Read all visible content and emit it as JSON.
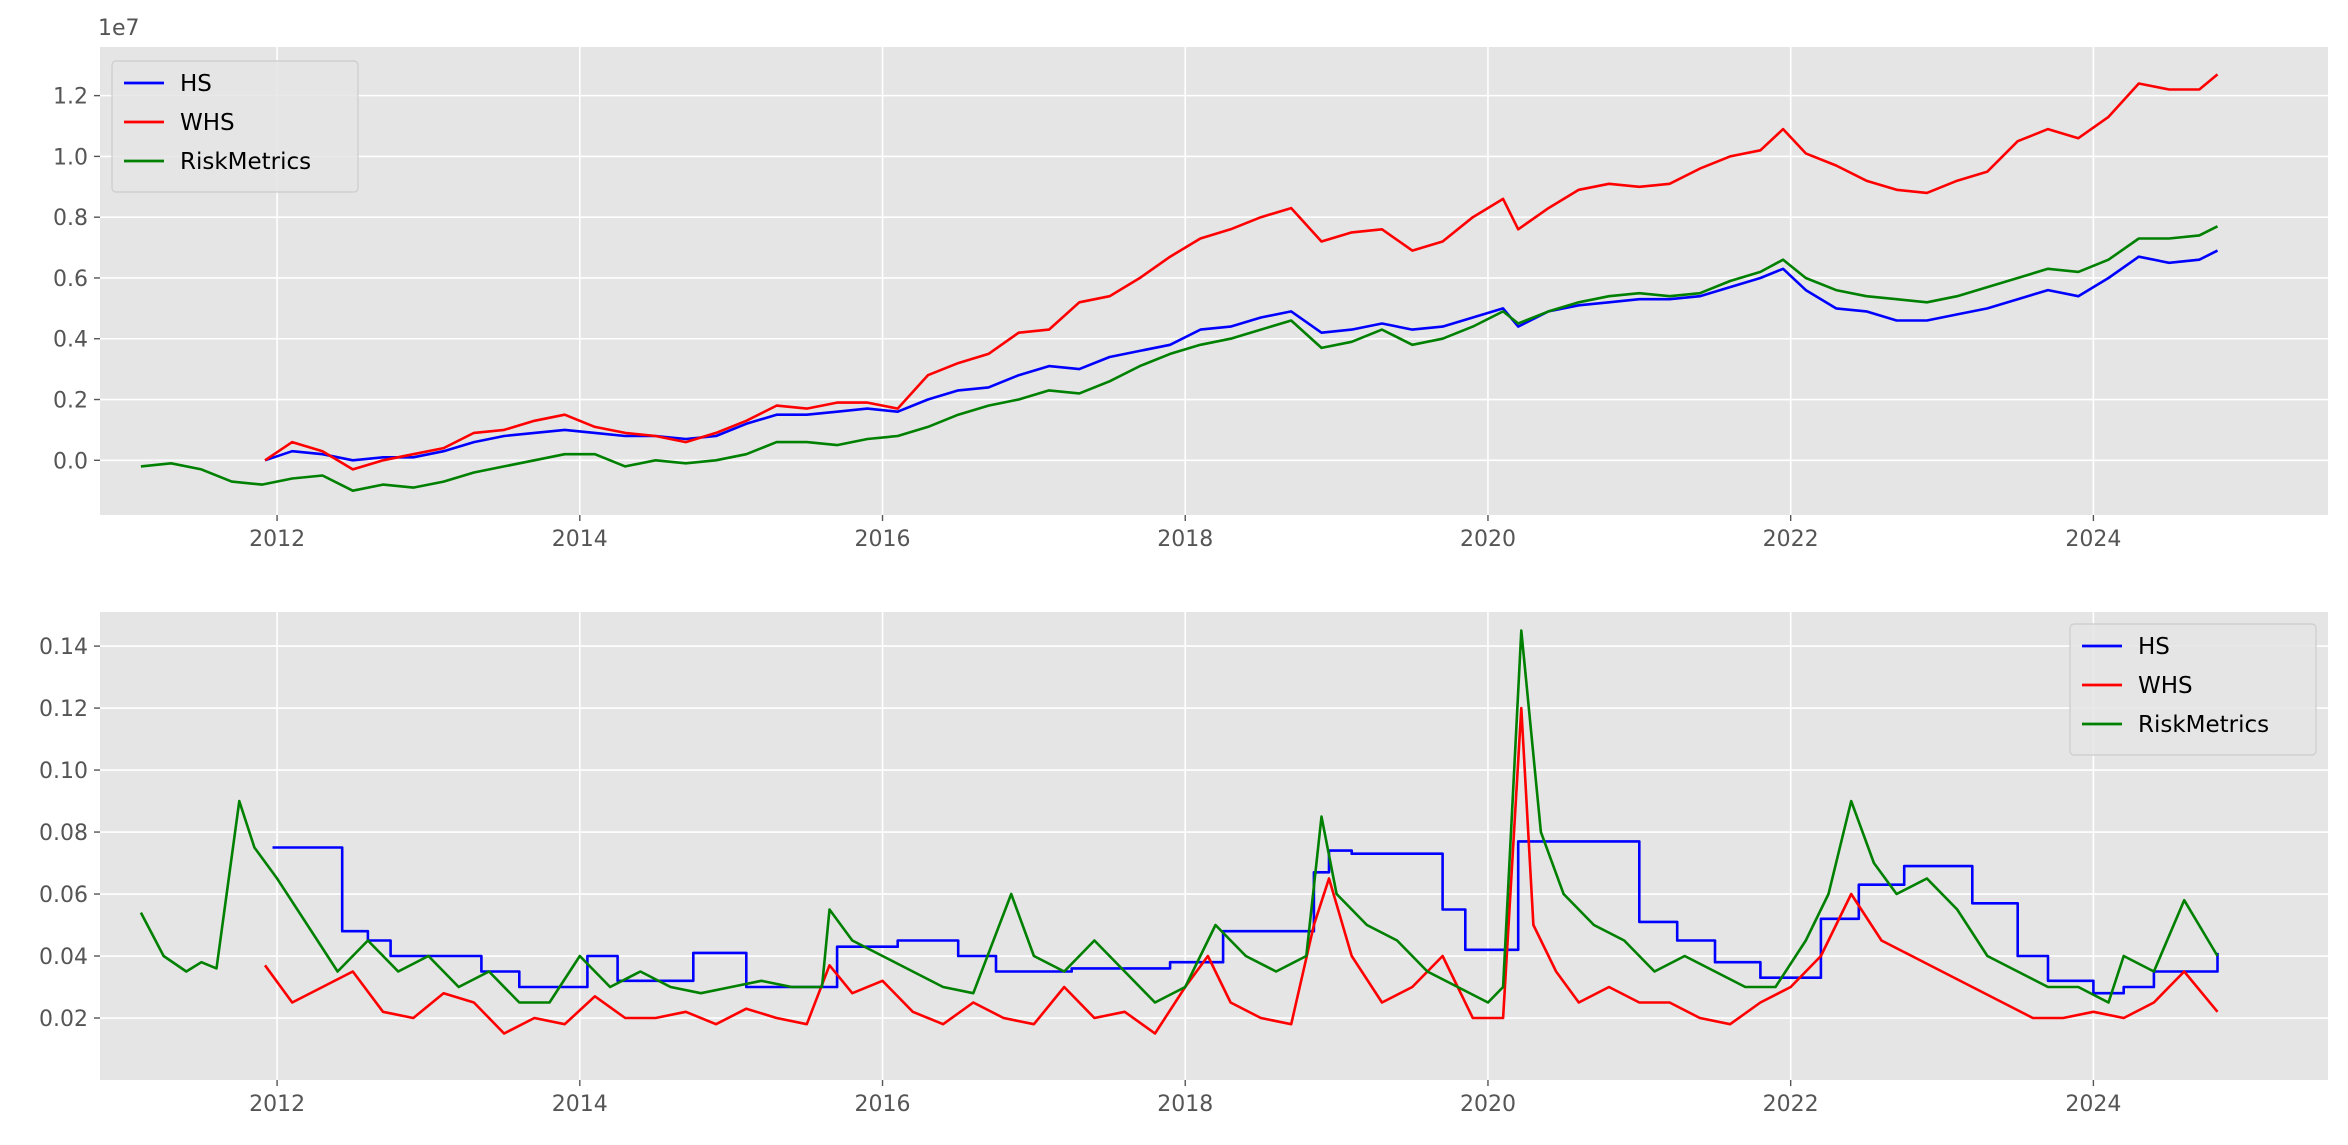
{
  "chart_data": [
    {
      "type": "line",
      "title": "",
      "xlabel": "",
      "ylabel": "",
      "y_offset_text": "1e7",
      "xlim": [
        2010.83,
        2025.55
      ],
      "ylim": [
        -1800000,
        13600000
      ],
      "xticks": [
        2012,
        2014,
        2016,
        2018,
        2020,
        2022,
        2024
      ],
      "xtick_labels": [
        "2012",
        "2014",
        "2016",
        "2018",
        "2020",
        "2022",
        "2024"
      ],
      "yticks": [
        0,
        2000000,
        4000000,
        6000000,
        8000000,
        10000000,
        12000000
      ],
      "ytick_labels": [
        "0.0",
        "0.2",
        "0.4",
        "0.6",
        "0.8",
        "1.0",
        "1.2"
      ],
      "grid": true,
      "legend_position": "upper-left",
      "series": [
        {
          "name": "HS",
          "color": "#0000ff",
          "x": [
            2011.92,
            2012.1,
            2012.3,
            2012.5,
            2012.7,
            2012.9,
            2013.1,
            2013.3,
            2013.5,
            2013.7,
            2013.9,
            2014.1,
            2014.3,
            2014.5,
            2014.7,
            2014.9,
            2015.1,
            2015.3,
            2015.5,
            2015.7,
            2015.9,
            2016.1,
            2016.3,
            2016.5,
            2016.7,
            2016.9,
            2017.1,
            2017.3,
            2017.5,
            2017.7,
            2017.9,
            2018.1,
            2018.3,
            2018.5,
            2018.7,
            2018.9,
            2019.1,
            2019.3,
            2019.5,
            2019.7,
            2019.9,
            2020.1,
            2020.2,
            2020.4,
            2020.6,
            2020.8,
            2021.0,
            2021.2,
            2021.4,
            2021.6,
            2021.8,
            2021.95,
            2022.1,
            2022.3,
            2022.5,
            2022.7,
            2022.9,
            2023.1,
            2023.3,
            2023.5,
            2023.7,
            2023.9,
            2024.1,
            2024.3,
            2024.5,
            2024.7,
            2024.82
          ],
          "values": [
            0,
            300000,
            200000,
            0,
            100000,
            100000,
            300000,
            600000,
            800000,
            900000,
            1000000,
            900000,
            800000,
            800000,
            700000,
            800000,
            1200000,
            1500000,
            1500000,
            1600000,
            1700000,
            1600000,
            2000000,
            2300000,
            2400000,
            2800000,
            3100000,
            3000000,
            3400000,
            3600000,
            3800000,
            4300000,
            4400000,
            4700000,
            4900000,
            4200000,
            4300000,
            4500000,
            4300000,
            4400000,
            4700000,
            5000000,
            4400000,
            4900000,
            5100000,
            5200000,
            5300000,
            5300000,
            5400000,
            5700000,
            6000000,
            6300000,
            5600000,
            5000000,
            4900000,
            4600000,
            4600000,
            4800000,
            5000000,
            5300000,
            5600000,
            5400000,
            6000000,
            6700000,
            6500000,
            6600000,
            6900000
          ]
        },
        {
          "name": "WHS",
          "color": "#ff0000",
          "x": [
            2011.92,
            2012.1,
            2012.3,
            2012.5,
            2012.7,
            2012.9,
            2013.1,
            2013.3,
            2013.5,
            2013.7,
            2013.9,
            2014.1,
            2014.3,
            2014.5,
            2014.7,
            2014.9,
            2015.1,
            2015.3,
            2015.5,
            2015.7,
            2015.9,
            2016.1,
            2016.3,
            2016.5,
            2016.7,
            2016.9,
            2017.1,
            2017.3,
            2017.5,
            2017.7,
            2017.9,
            2018.1,
            2018.3,
            2018.5,
            2018.7,
            2018.9,
            2019.1,
            2019.3,
            2019.5,
            2019.7,
            2019.9,
            2020.1,
            2020.2,
            2020.4,
            2020.6,
            2020.8,
            2021.0,
            2021.2,
            2021.4,
            2021.6,
            2021.8,
            2021.95,
            2022.1,
            2022.3,
            2022.5,
            2022.7,
            2022.9,
            2023.1,
            2023.3,
            2023.5,
            2023.7,
            2023.9,
            2024.1,
            2024.3,
            2024.5,
            2024.7,
            2024.82
          ],
          "values": [
            0,
            600000,
            300000,
            -300000,
            0,
            200000,
            400000,
            900000,
            1000000,
            1300000,
            1500000,
            1100000,
            900000,
            800000,
            600000,
            900000,
            1300000,
            1800000,
            1700000,
            1900000,
            1900000,
            1700000,
            2800000,
            3200000,
            3500000,
            4200000,
            4300000,
            5200000,
            5400000,
            6000000,
            6700000,
            7300000,
            7600000,
            8000000,
            8300000,
            7200000,
            7500000,
            7600000,
            6900000,
            7200000,
            8000000,
            8600000,
            7600000,
            8300000,
            8900000,
            9100000,
            9000000,
            9100000,
            9600000,
            10000000,
            10200000,
            10900000,
            10100000,
            9700000,
            9200000,
            8900000,
            8800000,
            9200000,
            9500000,
            10500000,
            10900000,
            10600000,
            11300000,
            12400000,
            12200000,
            12200000,
            12700000
          ]
        },
        {
          "name": "RiskMetrics",
          "color": "#008000",
          "x": [
            2011.1,
            2011.3,
            2011.5,
            2011.7,
            2011.9,
            2012.1,
            2012.3,
            2012.5,
            2012.7,
            2012.9,
            2013.1,
            2013.3,
            2013.5,
            2013.7,
            2013.9,
            2014.1,
            2014.3,
            2014.5,
            2014.7,
            2014.9,
            2015.1,
            2015.3,
            2015.5,
            2015.7,
            2015.9,
            2016.1,
            2016.3,
            2016.5,
            2016.7,
            2016.9,
            2017.1,
            2017.3,
            2017.5,
            2017.7,
            2017.9,
            2018.1,
            2018.3,
            2018.5,
            2018.7,
            2018.9,
            2019.1,
            2019.3,
            2019.5,
            2019.7,
            2019.9,
            2020.1,
            2020.2,
            2020.4,
            2020.6,
            2020.8,
            2021.0,
            2021.2,
            2021.4,
            2021.6,
            2021.8,
            2021.95,
            2022.1,
            2022.3,
            2022.5,
            2022.7,
            2022.9,
            2023.1,
            2023.3,
            2023.5,
            2023.7,
            2023.9,
            2024.1,
            2024.3,
            2024.5,
            2024.7,
            2024.82
          ],
          "values": [
            -200000,
            -100000,
            -300000,
            -700000,
            -800000,
            -600000,
            -500000,
            -1000000,
            -800000,
            -900000,
            -700000,
            -400000,
            -200000,
            0,
            200000,
            200000,
            -200000,
            0,
            -100000,
            0,
            200000,
            600000,
            600000,
            500000,
            700000,
            800000,
            1100000,
            1500000,
            1800000,
            2000000,
            2300000,
            2200000,
            2600000,
            3100000,
            3500000,
            3800000,
            4000000,
            4300000,
            4600000,
            3700000,
            3900000,
            4300000,
            3800000,
            4000000,
            4400000,
            4900000,
            4500000,
            4900000,
            5200000,
            5400000,
            5500000,
            5400000,
            5500000,
            5900000,
            6200000,
            6600000,
            6000000,
            5600000,
            5400000,
            5300000,
            5200000,
            5400000,
            5700000,
            6000000,
            6300000,
            6200000,
            6600000,
            7300000,
            7300000,
            7400000,
            7700000
          ]
        }
      ]
    },
    {
      "type": "line",
      "title": "",
      "xlabel": "",
      "ylabel": "",
      "xlim": [
        2010.83,
        2025.55
      ],
      "ylim": [
        0.0,
        0.151
      ],
      "xticks": [
        2012,
        2014,
        2016,
        2018,
        2020,
        2022,
        2024
      ],
      "xtick_labels": [
        "2012",
        "2014",
        "2016",
        "2018",
        "2020",
        "2022",
        "2024"
      ],
      "yticks": [
        0.02,
        0.04,
        0.06,
        0.08,
        0.1,
        0.12,
        0.14
      ],
      "ytick_labels": [
        "0.02",
        "0.04",
        "0.06",
        "0.08",
        "0.10",
        "0.12",
        "0.14"
      ],
      "grid": true,
      "legend_position": "upper-right",
      "series": [
        {
          "name": "HS",
          "color": "#0000ff",
          "step": true,
          "x": [
            2011.97,
            2012.43,
            2012.6,
            2012.75,
            2013.35,
            2013.6,
            2014.05,
            2014.25,
            2014.75,
            2015.1,
            2015.7,
            2016.1,
            2016.5,
            2016.75,
            2017.25,
            2017.9,
            2018.25,
            2018.85,
            2018.95,
            2019.1,
            2019.7,
            2019.85,
            2020.2,
            2021.0,
            2021.25,
            2021.5,
            2021.8,
            2022.2,
            2022.45,
            2022.75,
            2023.2,
            2023.5,
            2023.7,
            2024.0,
            2024.2,
            2024.4,
            2024.82
          ],
          "values": [
            0.075,
            0.048,
            0.045,
            0.04,
            0.035,
            0.03,
            0.04,
            0.032,
            0.041,
            0.03,
            0.043,
            0.045,
            0.04,
            0.035,
            0.036,
            0.038,
            0.048,
            0.067,
            0.074,
            0.073,
            0.055,
            0.042,
            0.077,
            0.051,
            0.045,
            0.038,
            0.033,
            0.052,
            0.063,
            0.069,
            0.057,
            0.04,
            0.032,
            0.028,
            0.03,
            0.035,
            0.041
          ]
        },
        {
          "name": "WHS",
          "color": "#ff0000",
          "x": [
            2011.92,
            2012.1,
            2012.3,
            2012.5,
            2012.7,
            2012.9,
            2013.1,
            2013.3,
            2013.5,
            2013.7,
            2013.9,
            2014.1,
            2014.3,
            2014.5,
            2014.7,
            2014.9,
            2015.1,
            2015.3,
            2015.5,
            2015.65,
            2015.8,
            2016.0,
            2016.2,
            2016.4,
            2016.6,
            2016.8,
            2017.0,
            2017.2,
            2017.4,
            2017.6,
            2017.8,
            2018.0,
            2018.15,
            2018.3,
            2018.5,
            2018.7,
            2018.85,
            2018.95,
            2019.1,
            2019.3,
            2019.5,
            2019.7,
            2019.9,
            2020.1,
            2020.22,
            2020.3,
            2020.45,
            2020.6,
            2020.8,
            2021.0,
            2021.2,
            2021.4,
            2021.6,
            2021.8,
            2022.0,
            2022.2,
            2022.4,
            2022.6,
            2022.8,
            2023.0,
            2023.2,
            2023.4,
            2023.6,
            2023.8,
            2024.0,
            2024.2,
            2024.4,
            2024.6,
            2024.82
          ],
          "values": [
            0.037,
            0.025,
            0.03,
            0.035,
            0.022,
            0.02,
            0.028,
            0.025,
            0.015,
            0.02,
            0.018,
            0.027,
            0.02,
            0.02,
            0.022,
            0.018,
            0.023,
            0.02,
            0.018,
            0.037,
            0.028,
            0.032,
            0.022,
            0.018,
            0.025,
            0.02,
            0.018,
            0.03,
            0.02,
            0.022,
            0.015,
            0.03,
            0.04,
            0.025,
            0.02,
            0.018,
            0.05,
            0.065,
            0.04,
            0.025,
            0.03,
            0.04,
            0.02,
            0.02,
            0.12,
            0.05,
            0.035,
            0.025,
            0.03,
            0.025,
            0.025,
            0.02,
            0.018,
            0.025,
            0.03,
            0.04,
            0.06,
            0.045,
            0.04,
            0.035,
            0.03,
            0.025,
            0.02,
            0.02,
            0.022,
            0.02,
            0.025,
            0.035,
            0.022
          ]
        },
        {
          "name": "RiskMetrics",
          "color": "#008000",
          "x": [
            2011.1,
            2011.25,
            2011.4,
            2011.5,
            2011.6,
            2011.75,
            2011.85,
            2012.0,
            2012.2,
            2012.4,
            2012.6,
            2012.8,
            2013.0,
            2013.2,
            2013.4,
            2013.6,
            2013.8,
            2014.0,
            2014.2,
            2014.4,
            2014.6,
            2014.8,
            2015.0,
            2015.2,
            2015.4,
            2015.6,
            2015.65,
            2015.8,
            2016.0,
            2016.2,
            2016.4,
            2016.6,
            2016.85,
            2017.0,
            2017.2,
            2017.4,
            2017.6,
            2017.8,
            2018.0,
            2018.2,
            2018.4,
            2018.6,
            2018.8,
            2018.9,
            2019.0,
            2019.2,
            2019.4,
            2019.6,
            2019.8,
            2020.0,
            2020.1,
            2020.22,
            2020.35,
            2020.5,
            2020.7,
            2020.9,
            2021.1,
            2021.3,
            2021.5,
            2021.7,
            2021.9,
            2022.1,
            2022.25,
            2022.4,
            2022.55,
            2022.7,
            2022.9,
            2023.1,
            2023.3,
            2023.5,
            2023.7,
            2023.9,
            2024.1,
            2024.2,
            2024.4,
            2024.6,
            2024.82
          ],
          "values": [
            0.054,
            0.04,
            0.035,
            0.038,
            0.036,
            0.09,
            0.075,
            0.065,
            0.05,
            0.035,
            0.045,
            0.035,
            0.04,
            0.03,
            0.035,
            0.025,
            0.025,
            0.04,
            0.03,
            0.035,
            0.03,
            0.028,
            0.03,
            0.032,
            0.03,
            0.03,
            0.055,
            0.045,
            0.04,
            0.035,
            0.03,
            0.028,
            0.06,
            0.04,
            0.035,
            0.045,
            0.035,
            0.025,
            0.03,
            0.05,
            0.04,
            0.035,
            0.04,
            0.085,
            0.06,
            0.05,
            0.045,
            0.035,
            0.03,
            0.025,
            0.03,
            0.145,
            0.08,
            0.06,
            0.05,
            0.045,
            0.035,
            0.04,
            0.035,
            0.03,
            0.03,
            0.045,
            0.06,
            0.09,
            0.07,
            0.06,
            0.065,
            0.055,
            0.04,
            0.035,
            0.03,
            0.03,
            0.025,
            0.04,
            0.035,
            0.058,
            0.04
          ]
        }
      ]
    }
  ]
}
